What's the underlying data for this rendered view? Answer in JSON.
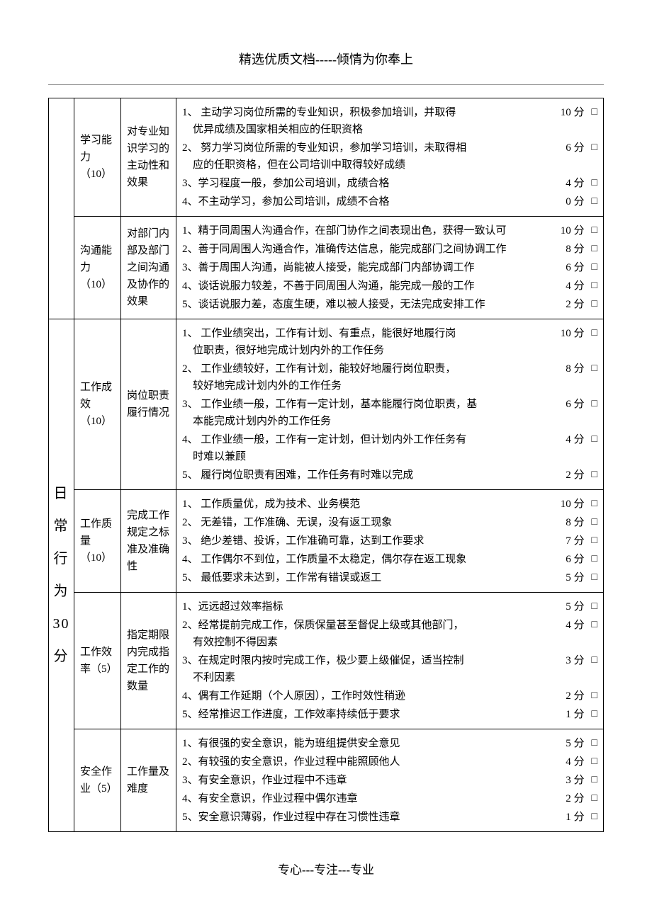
{
  "header": "精选优质文档-----倾情为你奉上",
  "footer": "专心---专注---专业",
  "checkbox_glyph": "□",
  "colors": {
    "bg": "#ffffff",
    "text": "#000000",
    "border": "#000000",
    "hr": "#999999"
  },
  "fonts": {
    "body_family": "SimSun",
    "body_size_pt": 11,
    "header_size_pt": 14,
    "category_size_pt": 15
  },
  "sections": [
    {
      "category_label": null,
      "rows": [
        {
          "item": "学习能力（10）",
          "desc": "对专业知识学习的主动性和效果",
          "criteria": [
            {
              "text": "1、 主动学习岗位所需的专业知识，积极参加培训，并取得\n    优异成绩及国家相关相应的任职资格",
              "score": "10 分"
            },
            {
              "text": "2、 努力学习岗位所需的专业知识，参加学习培训，未取得相\n    应的任职资格，但在公司培训中取得较好成绩",
              "score": "6 分"
            },
            {
              "text": "3、学习程度一般，参加公司培训，成绩合格",
              "score": "4 分"
            },
            {
              "text": "4、不主动学习，参加公司培训，成绩不合格",
              "score": "0 分"
            }
          ]
        },
        {
          "item": "沟通能力（10）",
          "desc": "对部门内部及部门之间沟通及协作的效果",
          "criteria": [
            {
              "text": "1、精于同周围人沟通合作，在部门协作之间表现出色，获得一致认可",
              "score": "10 分"
            },
            {
              "text": "2、善于同周围人沟通合作，准确传达信息，能完成部门之间协调工作",
              "score": "8 分"
            },
            {
              "text": "3、善于周围人沟通，尚能被人接受，能完成部门内部协调工作",
              "score": "6 分"
            },
            {
              "text": "4、谈话说服力较差，不善于同周围人沟通，能完成一般的工作",
              "score": "4 分"
            },
            {
              "text": "5、谈话说服力差，态度生硬，难以被人接受，无法完成安排工作",
              "score": "2 分"
            }
          ]
        }
      ]
    },
    {
      "category_label": "日常行为30分",
      "category_chars": [
        "日",
        "常",
        "行",
        "为",
        "30",
        "分"
      ],
      "rows": [
        {
          "item": "工作成效（10）",
          "desc": "岗位职责履行情况",
          "criteria": [
            {
              "text": "1、 工作业绩突出，工作有计划、有重点，能很好地履行岗\n    位职责，很好地完成计划内外的工作任务",
              "score": "10 分"
            },
            {
              "text": "2、 工作业绩较好，工作有计划，能较好地履行岗位职责，\n    较好地完成计划内外的工作任务",
              "score": "8 分"
            },
            {
              "text": "3、 工作业绩一般，工作有一定计划，基本能履行岗位职责，基\n    本能完成计划内外的工作任务",
              "score": "6 分"
            },
            {
              "text": "4、 工作业绩一般，工作有一定计划，但计划内外工作任务有\n    时难以兼顾",
              "score": "4 分"
            },
            {
              "text": "5、 履行岗位职责有困难，工作任务有时难以完成",
              "score": "2 分"
            }
          ]
        },
        {
          "item": "工作质量（10）",
          "desc": "完成工作规定之标准及准确性",
          "criteria": [
            {
              "text": "1、 工作质量优，成为技术、业务模范",
              "score": "10 分"
            },
            {
              "text": "2、 无差错，工作准确、无误，没有返工现象",
              "score": "8 分"
            },
            {
              "text": "3、 绝少差错、投诉，工作准确可靠，达到工作要求",
              "score": "7 分"
            },
            {
              "text": "4、 工作偶尔不到位，工作质量不太稳定，偶尔存在返工现象",
              "score": "6 分"
            },
            {
              "text": "5、 最低要求未达到，工作常有错误或返工",
              "score": "5 分"
            }
          ]
        },
        {
          "item": "工作效率（5）",
          "desc": "指定期限内完成指定工作的数量",
          "criteria": [
            {
              "text": "1、远远超过效率指标",
              "score": "5 分"
            },
            {
              "text": "2、经常提前完成工作，保质保量甚至督促上级或其他部门，\n    有效控制不得因素",
              "score": "4 分"
            },
            {
              "text": "3、在规定时限内按时完成工作，极少要上级催促，适当控制\n    不利因素",
              "score": "3 分"
            },
            {
              "text": "4、偶有工作延期（个人原因），工作时效性稍逊",
              "score": "2 分"
            },
            {
              "text": "5、经常推迟工作进度，工作效率持续低于要求",
              "score": "1 分"
            }
          ]
        },
        {
          "item": "安全作业（5）",
          "desc": "工作量及难度",
          "criteria": [
            {
              "text": "1、有很强的安全意识，能为班组提供安全意见",
              "score": "5 分"
            },
            {
              "text": "2、有较强的安全意识，作业过程中能照顾他人",
              "score": "4 分"
            },
            {
              "text": "3、有安全意识，作业过程中不违章",
              "score": "3 分"
            },
            {
              "text": "4、有安全意识，作业过程中偶尔违章",
              "score": "2 分"
            },
            {
              "text": "5、安全意识薄弱，作业过程中存在习惯性违章",
              "score": "1 分"
            }
          ]
        }
      ]
    }
  ]
}
